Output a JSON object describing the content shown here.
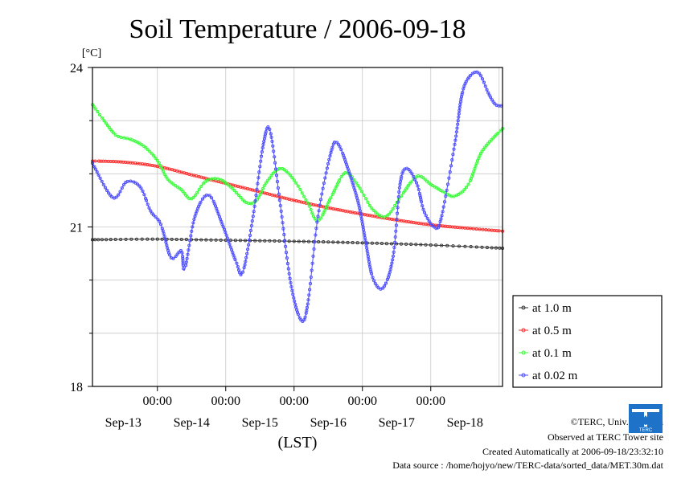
{
  "chart_data": {
    "type": "line",
    "title": "Soil Temperature / 2006-09-18",
    "ylabel": "[°C]",
    "xlabel": "(LST)",
    "ylim": [
      18,
      24
    ],
    "xlim": [
      -0.95,
      5.05
    ],
    "yticks": [
      18,
      21,
      24
    ],
    "time_labels": [
      "00:00",
      "00:00",
      "00:00",
      "00:00",
      "00:00"
    ],
    "date_labels": [
      "Sep-13",
      "Sep-14",
      "Sep-15",
      "Sep-16",
      "Sep-17",
      "Sep-18"
    ],
    "legend_position": "right",
    "grid": true,
    "series": [
      {
        "name": "at 1.0 m",
        "color": "#333333",
        "x": [
          -0.95,
          0,
          1,
          2,
          3,
          4,
          5.05
        ],
        "y": [
          20.76,
          20.77,
          20.75,
          20.73,
          20.7,
          20.66,
          20.6
        ]
      },
      {
        "name": "at 0.5 m",
        "color": "#ff2a2a",
        "x": [
          -0.95,
          -0.5,
          0,
          0.5,
          1,
          1.5,
          2,
          2.5,
          3,
          3.5,
          4,
          4.5,
          5.05
        ],
        "y": [
          22.24,
          22.22,
          22.14,
          21.98,
          21.82,
          21.66,
          21.5,
          21.36,
          21.24,
          21.13,
          21.04,
          20.98,
          20.92
        ]
      },
      {
        "name": "at 0.1 m",
        "color": "#33ff33",
        "x": [
          -0.95,
          -0.75,
          -0.6,
          -0.4,
          -0.2,
          0,
          0.15,
          0.35,
          0.5,
          0.7,
          0.9,
          1.1,
          1.3,
          1.45,
          1.6,
          1.8,
          2.0,
          2.2,
          2.35,
          2.55,
          2.75,
          2.95,
          3.15,
          3.35,
          3.55,
          3.8,
          4.0,
          4.2,
          4.35,
          4.55,
          4.75,
          5.05
        ],
        "y": [
          23.3,
          22.95,
          22.72,
          22.65,
          22.52,
          22.25,
          21.9,
          21.7,
          21.53,
          21.85,
          21.9,
          21.72,
          21.46,
          21.5,
          21.85,
          22.1,
          21.88,
          21.45,
          21.12,
          21.58,
          22.02,
          21.75,
          21.33,
          21.2,
          21.55,
          21.95,
          21.8,
          21.65,
          21.58,
          21.8,
          22.42,
          22.85
        ]
      },
      {
        "name": "at 0.02 m",
        "color": "#4a4aff",
        "x": [
          -0.95,
          -0.65,
          -0.45,
          -0.25,
          -0.1,
          0.05,
          0.2,
          0.35,
          0.4,
          0.55,
          0.75,
          0.95,
          1.15,
          1.25,
          1.4,
          1.55,
          1.65,
          1.8,
          1.95,
          2.1,
          2.2,
          2.35,
          2.55,
          2.65,
          2.8,
          2.95,
          3.05,
          3.15,
          3.3,
          3.45,
          3.55,
          3.65,
          3.8,
          3.9,
          4.05,
          4.15,
          4.35,
          4.45,
          4.55,
          4.7,
          4.85,
          4.95,
          5.05
        ],
        "y": [
          22.2,
          21.55,
          21.85,
          21.75,
          21.3,
          21.05,
          20.42,
          20.55,
          20.2,
          21.2,
          21.6,
          21.05,
          20.35,
          20.15,
          21.2,
          22.55,
          22.8,
          21.4,
          19.95,
          19.25,
          19.55,
          21.2,
          22.45,
          22.55,
          22.05,
          21.4,
          20.7,
          20.05,
          19.85,
          20.45,
          21.8,
          22.1,
          21.8,
          21.3,
          21.0,
          21.15,
          22.55,
          23.45,
          23.8,
          23.9,
          23.5,
          23.3,
          23.28
        ]
      }
    ]
  },
  "credits": {
    "copyright": "©TERC, Univ. Tsukuba",
    "site": "Observed at TERC Tower site",
    "created": "Created Automatically at 2006-09-18/23:32:10",
    "source": "Data source : /home/hojyo/new/TERC-data/sorted_data/MET.30m.dat"
  },
  "logo": {
    "text": "TERC",
    "color": "#1e73c8"
  }
}
